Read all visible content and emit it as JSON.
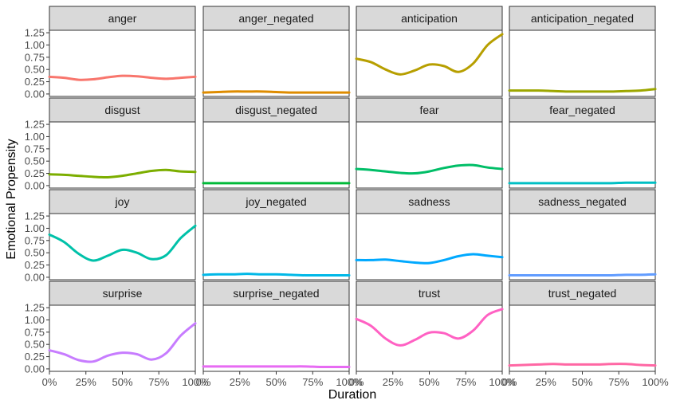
{
  "chart_data": {
    "type": "line",
    "layout": "facet-grid-4x4",
    "xlabel": "Duration",
    "ylabel": "Emotional Propensity",
    "xlim": [
      0,
      100
    ],
    "ylim": [
      -0.05,
      1.3
    ],
    "x_ticks": [
      0,
      25,
      50,
      75,
      100
    ],
    "x_tick_labels": [
      "0%",
      "25%",
      "50%",
      "75%",
      "100%"
    ],
    "y_ticks": [
      0,
      0.25,
      0.5,
      0.75,
      1.0,
      1.25
    ],
    "y_tick_labels": [
      "0.00",
      "0.25",
      "0.50",
      "0.75",
      "1.00",
      "1.25"
    ],
    "x": [
      0,
      10,
      20,
      30,
      40,
      50,
      60,
      70,
      80,
      90,
      100
    ],
    "grid": false,
    "strip_fill": "#d9d9d9",
    "panels": [
      {
        "name": "anger",
        "color": "#F8766D",
        "values": [
          0.35,
          0.33,
          0.29,
          0.3,
          0.34,
          0.37,
          0.36,
          0.33,
          0.31,
          0.33,
          0.35
        ]
      },
      {
        "name": "anger_negated",
        "color": "#DE8C00",
        "values": [
          0.03,
          0.04,
          0.05,
          0.05,
          0.05,
          0.04,
          0.03,
          0.03,
          0.03,
          0.03,
          0.03
        ]
      },
      {
        "name": "anticipation",
        "color": "#B79F00",
        "values": [
          0.72,
          0.65,
          0.5,
          0.4,
          0.48,
          0.6,
          0.57,
          0.45,
          0.62,
          1.0,
          1.22
        ]
      },
      {
        "name": "anticipation_negated",
        "color": "#9DA700",
        "values": [
          0.07,
          0.07,
          0.07,
          0.06,
          0.05,
          0.05,
          0.05,
          0.05,
          0.06,
          0.07,
          0.1
        ]
      },
      {
        "name": "disgust",
        "color": "#7CAE00",
        "values": [
          0.23,
          0.22,
          0.2,
          0.18,
          0.17,
          0.2,
          0.25,
          0.3,
          0.32,
          0.29,
          0.28
        ]
      },
      {
        "name": "disgust_negated",
        "color": "#00BA38",
        "values": [
          0.05,
          0.05,
          0.05,
          0.05,
          0.05,
          0.05,
          0.05,
          0.05,
          0.05,
          0.05,
          0.05
        ]
      },
      {
        "name": "fear",
        "color": "#00BE67",
        "values": [
          0.34,
          0.32,
          0.29,
          0.26,
          0.25,
          0.29,
          0.36,
          0.41,
          0.42,
          0.37,
          0.34
        ]
      },
      {
        "name": "fear_negated",
        "color": "#00BFC4",
        "values": [
          0.05,
          0.05,
          0.05,
          0.05,
          0.05,
          0.05,
          0.05,
          0.05,
          0.06,
          0.06,
          0.06
        ]
      },
      {
        "name": "joy",
        "color": "#00C1A9",
        "values": [
          0.87,
          0.72,
          0.48,
          0.34,
          0.44,
          0.56,
          0.5,
          0.37,
          0.45,
          0.8,
          1.05
        ]
      },
      {
        "name": "joy_negated",
        "color": "#00B8E7",
        "values": [
          0.05,
          0.06,
          0.06,
          0.07,
          0.06,
          0.06,
          0.05,
          0.04,
          0.04,
          0.04,
          0.04
        ]
      },
      {
        "name": "sadness",
        "color": "#00A9FF",
        "values": [
          0.35,
          0.35,
          0.36,
          0.33,
          0.3,
          0.29,
          0.35,
          0.43,
          0.47,
          0.44,
          0.41
        ]
      },
      {
        "name": "sadness_negated",
        "color": "#619CFF",
        "values": [
          0.04,
          0.04,
          0.04,
          0.04,
          0.04,
          0.04,
          0.04,
          0.04,
          0.05,
          0.05,
          0.06
        ]
      },
      {
        "name": "surprise",
        "color": "#C77CFF",
        "values": [
          0.38,
          0.3,
          0.18,
          0.15,
          0.27,
          0.33,
          0.3,
          0.19,
          0.32,
          0.68,
          0.93
        ]
      },
      {
        "name": "surprise_negated",
        "color": "#E76BF3",
        "values": [
          0.05,
          0.05,
          0.05,
          0.05,
          0.05,
          0.05,
          0.05,
          0.05,
          0.04,
          0.04,
          0.04
        ]
      },
      {
        "name": "trust",
        "color": "#FF61C3",
        "values": [
          1.02,
          0.88,
          0.62,
          0.48,
          0.59,
          0.74,
          0.73,
          0.62,
          0.78,
          1.1,
          1.22
        ]
      },
      {
        "name": "trust_negated",
        "color": "#FF67A4",
        "values": [
          0.07,
          0.08,
          0.09,
          0.1,
          0.09,
          0.09,
          0.09,
          0.1,
          0.1,
          0.08,
          0.07
        ]
      }
    ]
  }
}
